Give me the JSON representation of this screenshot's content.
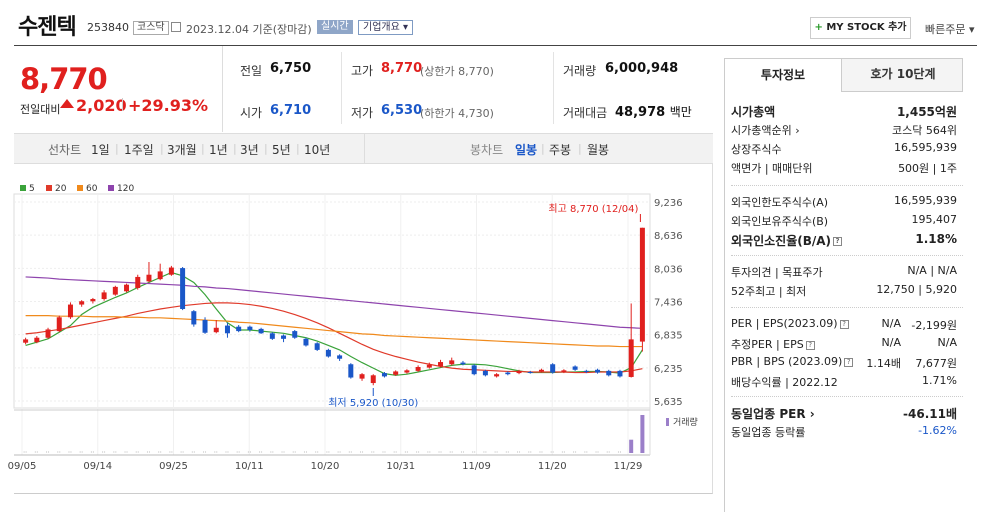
{
  "header": {
    "name": "수젠텍",
    "code": "253840",
    "market": "코스닥",
    "date": "2023.12.04",
    "basis": "기준(장마감)",
    "realtime": "실시간",
    "overview": "기업개요 ▾",
    "mystock": "MY STOCK 추가",
    "quick": "빠른주문 ▾"
  },
  "price": {
    "current": "8,770",
    "prev_label": "전일대비",
    "change": "2,020",
    "change_pct": "+29.93%"
  },
  "stats": {
    "prev_close_label": "전일",
    "prev_close": "6,750",
    "high_label": "고가",
    "high": "8,770",
    "upper_limit": "(상한가 8,770)",
    "volume_label": "거래량",
    "volume": "6,000,948",
    "open_label": "시가",
    "open": "6,710",
    "low_label": "저가",
    "low": "6,530",
    "lower_limit": "(하한가 4,730)",
    "amount_label": "거래대금",
    "amount": "48,978",
    "amount_unit": "백만"
  },
  "line_tabs": {
    "label": "선차트",
    "items": [
      "1일",
      "1주일",
      "3개월",
      "1년",
      "3년",
      "5년",
      "10년"
    ]
  },
  "candle_tabs": {
    "label": "봉차트",
    "items": [
      "일봉",
      "주봉",
      "월봉"
    ],
    "active": "일봉"
  },
  "legend": [
    {
      "label": "5",
      "color": "#3aa33a"
    },
    {
      "label": "20",
      "color": "#e03a2a"
    },
    {
      "label": "60",
      "color": "#f08a1c"
    },
    {
      "label": "120",
      "color": "#8e44ad"
    }
  ],
  "chart_data": {
    "type": "candlestick",
    "y_ticks": [
      "9,236",
      "8,636",
      "8,036",
      "7,436",
      "6,835",
      "6,235",
      "5,635"
    ],
    "ylim": [
      5635,
      9236
    ],
    "x_ticks": [
      "09/05",
      "09/14",
      "09/25",
      "10/11",
      "10/20",
      "10/31",
      "11/09",
      "11/20",
      "11/29"
    ],
    "high_annot": "최고 8,770 (12/04)",
    "low_annot": "최저 5,920 (10/30)",
    "volume_label": "거래량",
    "candles": [
      {
        "o": 6690,
        "c": 6750,
        "h": 6780,
        "l": 6660,
        "v": 3
      },
      {
        "o": 6700,
        "c": 6780,
        "h": 6810,
        "l": 6680,
        "v": 3
      },
      {
        "o": 6780,
        "c": 6930,
        "h": 6960,
        "l": 6760,
        "v": 3
      },
      {
        "o": 6900,
        "c": 7150,
        "h": 7180,
        "l": 6880,
        "v": 4
      },
      {
        "o": 7150,
        "c": 7380,
        "h": 7420,
        "l": 7120,
        "v": 4
      },
      {
        "o": 7380,
        "c": 7440,
        "h": 7460,
        "l": 7340,
        "v": 3
      },
      {
        "o": 7440,
        "c": 7480,
        "h": 7500,
        "l": 7400,
        "v": 3
      },
      {
        "o": 7480,
        "c": 7600,
        "h": 7640,
        "l": 7450,
        "v": 3
      },
      {
        "o": 7560,
        "c": 7700,
        "h": 7720,
        "l": 7540,
        "v": 3
      },
      {
        "o": 7620,
        "c": 7740,
        "h": 7760,
        "l": 7600,
        "v": 3
      },
      {
        "o": 7680,
        "c": 7880,
        "h": 7920,
        "l": 7650,
        "v": 3
      },
      {
        "o": 7800,
        "c": 7920,
        "h": 8150,
        "l": 7780,
        "v": 3
      },
      {
        "o": 7840,
        "c": 7980,
        "h": 8120,
        "l": 7820,
        "v": 3
      },
      {
        "o": 7920,
        "c": 8050,
        "h": 8080,
        "l": 7900,
        "v": 3
      },
      {
        "o": 8040,
        "c": 7300,
        "h": 8060,
        "l": 7280,
        "v": 4
      },
      {
        "o": 7260,
        "c": 7020,
        "h": 7280,
        "l": 6980,
        "v": 3
      },
      {
        "o": 7100,
        "c": 6870,
        "h": 7150,
        "l": 6850,
        "v": 3
      },
      {
        "o": 6880,
        "c": 6960,
        "h": 7100,
        "l": 6860,
        "v": 3
      },
      {
        "o": 7000,
        "c": 6860,
        "h": 7050,
        "l": 6780,
        "v": 3
      },
      {
        "o": 6980,
        "c": 6900,
        "h": 7010,
        "l": 6880,
        "v": 3
      },
      {
        "o": 6980,
        "c": 6920,
        "h": 7000,
        "l": 6890,
        "v": 3
      },
      {
        "o": 6940,
        "c": 6860,
        "h": 6960,
        "l": 6850,
        "v": 3
      },
      {
        "o": 6860,
        "c": 6760,
        "h": 6880,
        "l": 6740,
        "v": 3
      },
      {
        "o": 6820,
        "c": 6760,
        "h": 6840,
        "l": 6700,
        "v": 3
      },
      {
        "o": 6900,
        "c": 6780,
        "h": 6920,
        "l": 6760,
        "v": 3
      },
      {
        "o": 6760,
        "c": 6640,
        "h": 6780,
        "l": 6620,
        "v": 3
      },
      {
        "o": 6680,
        "c": 6560,
        "h": 6700,
        "l": 6540,
        "v": 3
      },
      {
        "o": 6560,
        "c": 6440,
        "h": 6580,
        "l": 6420,
        "v": 3
      },
      {
        "o": 6460,
        "c": 6400,
        "h": 6480,
        "l": 6360,
        "v": 3
      },
      {
        "o": 6300,
        "c": 6060,
        "h": 6320,
        "l": 6040,
        "v": 3
      },
      {
        "o": 6040,
        "c": 6120,
        "h": 6140,
        "l": 6000,
        "v": 3
      },
      {
        "o": 5960,
        "c": 6100,
        "h": 6120,
        "l": 5920,
        "v": 3
      },
      {
        "o": 6140,
        "c": 6080,
        "h": 6160,
        "l": 6060,
        "v": 3
      },
      {
        "o": 6110,
        "c": 6170,
        "h": 6190,
        "l": 6090,
        "v": 3
      },
      {
        "o": 6150,
        "c": 6190,
        "h": 6210,
        "l": 6130,
        "v": 3
      },
      {
        "o": 6180,
        "c": 6250,
        "h": 6280,
        "l": 6160,
        "v": 3
      },
      {
        "o": 6240,
        "c": 6290,
        "h": 6330,
        "l": 6220,
        "v": 3
      },
      {
        "o": 6260,
        "c": 6340,
        "h": 6380,
        "l": 6240,
        "v": 3
      },
      {
        "o": 6300,
        "c": 6370,
        "h": 6420,
        "l": 6280,
        "v": 3
      },
      {
        "o": 6330,
        "c": 6300,
        "h": 6360,
        "l": 6280,
        "v": 3
      },
      {
        "o": 6280,
        "c": 6120,
        "h": 6300,
        "l": 6100,
        "v": 3
      },
      {
        "o": 6180,
        "c": 6100,
        "h": 6200,
        "l": 6080,
        "v": 3
      },
      {
        "o": 6080,
        "c": 6120,
        "h": 6140,
        "l": 6060,
        "v": 3
      },
      {
        "o": 6150,
        "c": 6120,
        "h": 6170,
        "l": 6100,
        "v": 3
      },
      {
        "o": 6140,
        "c": 6180,
        "h": 6200,
        "l": 6120,
        "v": 3
      },
      {
        "o": 6160,
        "c": 6150,
        "h": 6180,
        "l": 6130,
        "v": 3
      },
      {
        "o": 6170,
        "c": 6200,
        "h": 6220,
        "l": 6150,
        "v": 3
      },
      {
        "o": 6300,
        "c": 6150,
        "h": 6320,
        "l": 6130,
        "v": 3
      },
      {
        "o": 6160,
        "c": 6190,
        "h": 6210,
        "l": 6140,
        "v": 3
      },
      {
        "o": 6260,
        "c": 6200,
        "h": 6280,
        "l": 6180,
        "v": 3
      },
      {
        "o": 6180,
        "c": 6160,
        "h": 6200,
        "l": 6140,
        "v": 3
      },
      {
        "o": 6200,
        "c": 6150,
        "h": 6220,
        "l": 6130,
        "v": 3
      },
      {
        "o": 6180,
        "c": 6100,
        "h": 6200,
        "l": 6080,
        "v": 3
      },
      {
        "o": 6180,
        "c": 6080,
        "h": 6200,
        "l": 6060,
        "v": 3
      },
      {
        "o": 6070,
        "c": 6750,
        "h": 7400,
        "l": 6060,
        "v": 35
      },
      {
        "o": 6710,
        "c": 8770,
        "h": 8770,
        "l": 6530,
        "v": 100
      }
    ],
    "ma5": [
      6640,
      6700,
      6760,
      6880,
      7000,
      7200,
      7330,
      7420,
      7510,
      7590,
      7690,
      7780,
      7870,
      7960,
      7900,
      7780,
      7560,
      7300,
      7050,
      6920,
      6920,
      6900,
      6880,
      6860,
      6820,
      6780,
      6720,
      6640,
      6560,
      6440,
      6330,
      6230,
      6130,
      6100,
      6120,
      6160,
      6200,
      6240,
      6280,
      6300,
      6300,
      6290,
      6260,
      6220,
      6180,
      6150,
      6150,
      6150,
      6160,
      6160,
      6170,
      6170,
      6160,
      6140,
      6240,
      6560
    ],
    "ma20": [
      6850,
      6870,
      6900,
      6930,
      6970,
      7010,
      7050,
      7090,
      7130,
      7170,
      7220,
      7260,
      7300,
      7330,
      7360,
      7380,
      7400,
      7410,
      7410,
      7400,
      7380,
      7350,
      7310,
      7260,
      7200,
      7130,
      7050,
      6960,
      6860,
      6760,
      6660,
      6570,
      6500,
      6440,
      6390,
      6340,
      6300,
      6260,
      6230,
      6210,
      6200,
      6190,
      6180,
      6170,
      6170,
      6160,
      6160,
      6160,
      6160,
      6150,
      6150,
      6160,
      6160,
      6160,
      6180,
      6220
    ],
    "ma60": [
      7180,
      7180,
      7180,
      7170,
      7170,
      7170,
      7160,
      7160,
      7160,
      7150,
      7150,
      7140,
      7140,
      7130,
      7120,
      7110,
      7100,
      7090,
      7080,
      7060,
      7050,
      7030,
      7010,
      6990,
      6970,
      6950,
      6930,
      6910,
      6890,
      6870,
      6850,
      6840,
      6820,
      6810,
      6800,
      6790,
      6780,
      6770,
      6760,
      6750,
      6740,
      6730,
      6720,
      6710,
      6700,
      6690,
      6680,
      6670,
      6660,
      6650,
      6640,
      6630,
      6630,
      6620,
      6620,
      6620
    ],
    "ma120": [
      7880,
      7870,
      7860,
      7840,
      7830,
      7820,
      7810,
      7800,
      7790,
      7780,
      7770,
      7760,
      7750,
      7740,
      7730,
      7710,
      7700,
      7680,
      7670,
      7650,
      7630,
      7610,
      7590,
      7570,
      7550,
      7530,
      7510,
      7490,
      7470,
      7450,
      7430,
      7410,
      7390,
      7370,
      7350,
      7330,
      7310,
      7290,
      7270,
      7250,
      7230,
      7210,
      7190,
      7170,
      7150,
      7130,
      7110,
      7090,
      7070,
      7050,
      7030,
      7010,
      6990,
      6970,
      6960,
      6950
    ]
  },
  "panel": {
    "tab_invest": "투자정보",
    "tab_quote": "호가 10단계",
    "rows1": [
      {
        "k": "시가총액",
        "v": "1,455억원",
        "bold": true
      },
      {
        "k": "시가총액순위 ›",
        "v": "코스닥 564위"
      },
      {
        "k": "상장주식수",
        "v": "16,595,939"
      },
      {
        "k": "액면가 | 매매단위",
        "v": "500원 | 1주"
      }
    ],
    "rows2": [
      {
        "k": "외국인한도주식수(A)",
        "v": "16,595,939"
      },
      {
        "k": "외국인보유주식수(B)",
        "v": "195,407"
      },
      {
        "k": "외국인소진율(B/A)",
        "v": "1.18%",
        "bold": true
      }
    ],
    "rows3": [
      {
        "k": "투자의견 | 목표주가",
        "v": "N/A | N/A"
      },
      {
        "k": "52주최고 | 최저",
        "v": "12,750 | 5,920"
      }
    ],
    "rows4": [
      {
        "k": "PER | EPS(2023.09)",
        "v1": "N/A",
        "v2": "-2,199원"
      },
      {
        "k": "추정PER | EPS",
        "v1": "N/A",
        "v2": "N/A"
      },
      {
        "k": "PBR | BPS (2023.09)",
        "v1": "1.14배",
        "v2": "7,677원"
      },
      {
        "k": "배당수익률 | 2022.12",
        "v1": "",
        "v2": "1.71%"
      }
    ],
    "rows5": [
      {
        "k": "동일업종 PER ›",
        "v": "-46.11배",
        "bold": true
      },
      {
        "k": "동일업종 등락률",
        "v": "-1.62%",
        "blue": true
      }
    ]
  }
}
